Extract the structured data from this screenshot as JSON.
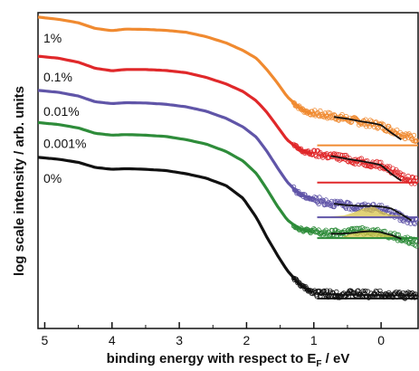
{
  "chart_data": {
    "type": "line",
    "title": "",
    "xlabel_main": "binding energy with respect to E",
    "xlabel_sub": "F",
    "xlabel_unit": " / eV",
    "ylabel": "log scale intensity / arb. units",
    "xlim": [
      5.1,
      -0.55
    ],
    "x_reversed": true,
    "ylim": [
      0,
      10
    ],
    "y_ticks_labeled": false,
    "grid": false,
    "x_ticks": [
      {
        "value": 5,
        "label": "5"
      },
      {
        "value": 4,
        "label": "4"
      },
      {
        "value": 3,
        "label": "3"
      },
      {
        "value": 2,
        "label": "2"
      },
      {
        "value": 1,
        "label": "1"
      },
      {
        "value": 0,
        "label": "0"
      }
    ],
    "series": [
      {
        "name": "1%",
        "color": "#f08a30",
        "x": [
          5.1,
          4.8,
          4.5,
          4.25,
          4.0,
          3.8,
          3.5,
          3.2,
          2.9,
          2.6,
          2.3,
          2.05,
          1.85,
          1.7,
          1.55,
          1.4,
          1.25,
          1.15,
          1.05,
          0.95,
          0.8,
          0.6,
          0.4,
          0.2,
          0.0,
          -0.2,
          -0.4,
          -0.55
        ],
        "y": [
          9.86,
          9.79,
          9.68,
          9.5,
          9.43,
          9.48,
          9.47,
          9.44,
          9.38,
          9.24,
          9.04,
          8.8,
          8.55,
          8.2,
          7.8,
          7.35,
          7.05,
          6.9,
          6.82,
          6.8,
          6.75,
          6.68,
          6.58,
          6.5,
          6.42,
          6.25,
          6.08,
          6.0
        ],
        "fit_x": [
          0.7,
          0.5,
          0.3,
          0.1,
          0.0,
          -0.15,
          -0.3
        ],
        "fit_y": [
          6.7,
          6.64,
          6.56,
          6.49,
          6.44,
          6.2,
          5.98
        ],
        "baseline_x": [
          0.95,
          -0.55
        ],
        "baseline_y": 5.8
      },
      {
        "name": "0.1%",
        "color": "#e0282a",
        "x": [
          5.1,
          4.8,
          4.5,
          4.25,
          4.0,
          3.8,
          3.5,
          3.2,
          2.9,
          2.6,
          2.3,
          2.05,
          1.85,
          1.7,
          1.55,
          1.4,
          1.25,
          1.15,
          1.05,
          0.95,
          0.8,
          0.6,
          0.4,
          0.2,
          0.0,
          -0.2,
          -0.4,
          -0.55
        ],
        "y": [
          8.62,
          8.56,
          8.43,
          8.24,
          8.16,
          8.2,
          8.2,
          8.17,
          8.1,
          7.95,
          7.74,
          7.5,
          7.2,
          6.85,
          6.42,
          5.98,
          5.72,
          5.6,
          5.55,
          5.53,
          5.48,
          5.42,
          5.32,
          5.24,
          5.18,
          4.95,
          4.72,
          4.65
        ],
        "fit_x": [
          0.75,
          0.5,
          0.3,
          0.1,
          0.0,
          -0.15,
          -0.3
        ],
        "fit_y": [
          5.46,
          5.37,
          5.3,
          5.22,
          5.17,
          4.9,
          4.68
        ],
        "baseline_x": [
          0.95,
          -0.55
        ],
        "baseline_y": 4.62
      },
      {
        "name": "0.01%",
        "color": "#6055a8",
        "x": [
          5.1,
          4.8,
          4.5,
          4.25,
          4.0,
          3.8,
          3.5,
          3.2,
          2.9,
          2.6,
          2.3,
          2.05,
          1.85,
          1.7,
          1.55,
          1.4,
          1.25,
          1.15,
          1.05,
          0.95,
          0.8,
          0.6,
          0.4,
          0.2,
          0.0,
          -0.2,
          -0.4,
          -0.55
        ],
        "y": [
          7.54,
          7.48,
          7.36,
          7.18,
          7.12,
          7.15,
          7.14,
          7.1,
          7.02,
          6.88,
          6.65,
          6.38,
          6.05,
          5.62,
          5.12,
          4.65,
          4.32,
          4.2,
          4.12,
          4.06,
          4.0,
          3.92,
          3.85,
          3.85,
          3.8,
          3.62,
          3.4,
          3.38
        ],
        "fit_x": [
          0.7,
          0.5,
          0.3,
          0.15,
          0.0,
          -0.15,
          -0.3,
          -0.45
        ],
        "fit_y": [
          3.95,
          3.9,
          3.88,
          3.88,
          3.86,
          3.8,
          3.62,
          3.42
        ],
        "peak_x": [
          0.75,
          0.55,
          0.4,
          0.25,
          0.1,
          0.0,
          -0.15,
          -0.35
        ],
        "peak_y": [
          3.55,
          3.58,
          3.68,
          3.82,
          3.85,
          3.72,
          3.6,
          3.55
        ],
        "baseline_x": [
          0.95,
          -0.55
        ],
        "baseline_y": 3.52
      },
      {
        "name": "0.001%",
        "color": "#2e8c3a",
        "x": [
          5.1,
          4.8,
          4.5,
          4.25,
          4.0,
          3.8,
          3.5,
          3.2,
          2.9,
          2.6,
          2.3,
          2.05,
          1.85,
          1.7,
          1.55,
          1.4,
          1.25,
          1.15,
          1.05,
          0.95,
          0.8,
          0.6,
          0.4,
          0.2,
          0.0,
          -0.2,
          -0.4,
          -0.55
        ],
        "y": [
          6.52,
          6.46,
          6.35,
          6.18,
          6.12,
          6.14,
          6.12,
          6.08,
          5.98,
          5.84,
          5.6,
          5.3,
          4.9,
          4.42,
          3.9,
          3.45,
          3.2,
          3.12,
          3.08,
          3.04,
          3.0,
          3.02,
          3.08,
          3.1,
          3.04,
          2.92,
          2.78,
          2.68
        ],
        "fit_x": [
          0.75,
          0.6,
          0.45,
          0.3,
          0.15,
          0.0,
          -0.15,
          -0.3
        ],
        "fit_y": [
          3.0,
          3.0,
          3.02,
          3.06,
          3.08,
          3.05,
          2.96,
          2.84
        ],
        "peak_x": [
          0.85,
          0.6,
          0.4,
          0.25,
          0.1,
          -0.05,
          -0.25,
          -0.5
        ],
        "peak_y": [
          2.86,
          2.88,
          3.04,
          3.12,
          3.08,
          2.98,
          2.9,
          2.86
        ],
        "baseline_x": [
          0.95,
          -0.55
        ],
        "baseline_y": 2.86
      },
      {
        "name": "0%",
        "color": "#111111",
        "x": [
          5.1,
          4.8,
          4.5,
          4.25,
          4.0,
          3.8,
          3.5,
          3.2,
          2.9,
          2.6,
          2.3,
          2.05,
          1.85,
          1.7,
          1.55,
          1.4,
          1.25,
          1.15,
          1.05,
          0.95,
          0.8,
          0.6,
          0.4,
          0.2,
          0.0,
          -0.2,
          -0.4,
          -0.55
        ],
        "y": [
          5.42,
          5.36,
          5.26,
          5.1,
          5.04,
          5.06,
          5.04,
          5.0,
          4.9,
          4.76,
          4.52,
          4.12,
          3.5,
          2.9,
          2.35,
          1.85,
          1.48,
          1.3,
          1.18,
          1.12,
          1.1,
          1.08,
          1.1,
          1.08,
          1.1,
          1.06,
          1.05,
          1.04
        ],
        "fit_x": [
          0.95,
          -0.55
        ],
        "fit_y": [
          1.08,
          1.04
        ],
        "baseline_x": [
          0.95,
          -0.55
        ],
        "baseline_y": 0.95
      }
    ]
  }
}
